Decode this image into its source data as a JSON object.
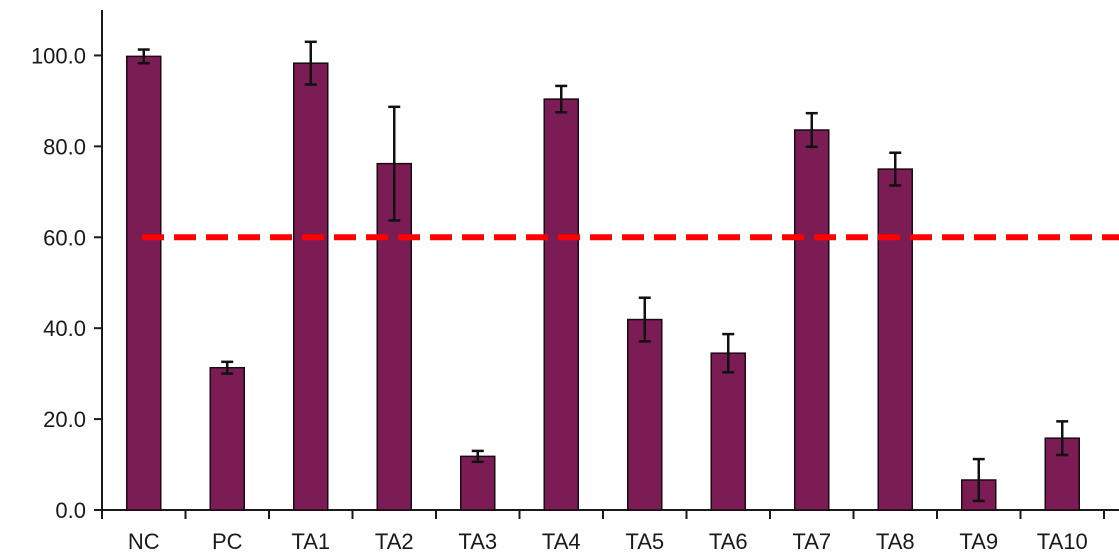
{
  "chart_data": {
    "type": "bar",
    "categories": [
      "NC",
      "PC",
      "TA1",
      "TA2",
      "TA3",
      "TA4",
      "TA5",
      "TA6",
      "TA7",
      "TA8",
      "TA9",
      "TA10"
    ],
    "values": [
      99.8,
      31.3,
      98.3,
      76.2,
      11.8,
      90.4,
      41.9,
      34.5,
      83.6,
      75.0,
      6.6,
      15.8
    ],
    "errors": [
      1.5,
      1.3,
      4.7,
      12.5,
      1.2,
      2.9,
      4.8,
      4.2,
      3.7,
      3.6,
      4.6,
      3.7
    ],
    "ylim": [
      0,
      110
    ],
    "yticks": [
      0.0,
      20.0,
      40.0,
      60.0,
      80.0,
      100.0
    ],
    "ytick_labels": [
      "0.0",
      "20.0",
      "40.0",
      "60.0",
      "80.0",
      "100.0"
    ],
    "reference_line": {
      "value": 60.0,
      "style": "dashed",
      "color": "#ff0000"
    },
    "title": "",
    "xlabel": "",
    "ylabel": "",
    "grid": false,
    "bar_color": "#7b1c55",
    "bar_edge_color": "#1a0a12"
  }
}
